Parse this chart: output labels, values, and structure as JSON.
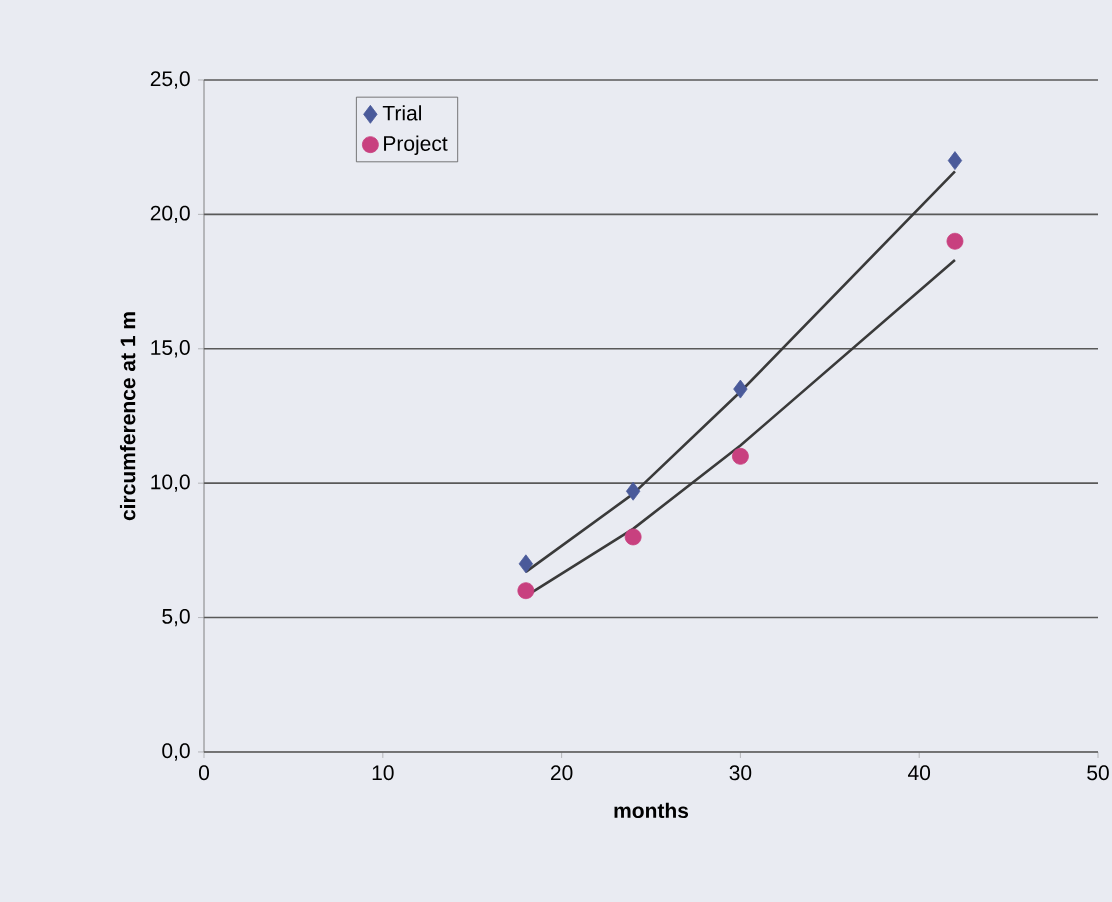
{
  "chart_data": {
    "type": "scatter",
    "xlabel": "months",
    "ylabel": "circumference at 1 m",
    "xlim": [
      0,
      50
    ],
    "xticks": [
      0,
      10,
      20,
      30,
      40,
      50
    ],
    "ylim": [
      0,
      25
    ],
    "yticks": [
      {
        "value": 0,
        "label": "0,0"
      },
      {
        "value": 5,
        "label": "5,0"
      },
      {
        "value": 10,
        "label": "10,0"
      },
      {
        "value": 15,
        "label": "15,0"
      },
      {
        "value": 20,
        "label": "20,0"
      },
      {
        "value": 25,
        "label": "25,0"
      }
    ],
    "grid": "y",
    "legend": "top left",
    "series": [
      {
        "name": "Trial",
        "color": "#4a5a9a",
        "marker": "diamond",
        "x": [
          18,
          24,
          30,
          42
        ],
        "values": [
          7.0,
          9.7,
          13.5,
          22.0
        ]
      },
      {
        "name": "Project",
        "color": "#c8407f",
        "marker": "circle",
        "x": [
          18,
          24,
          30,
          42
        ],
        "values": [
          6.0,
          8.0,
          11.0,
          19.0
        ]
      },
      {
        "type": "line",
        "color": "#3a3a3a",
        "marker": "none",
        "x": [
          18,
          24,
          30,
          42
        ],
        "values": [
          6.7,
          9.6,
          13.4,
          21.6
        ]
      },
      {
        "type": "line",
        "color": "#3a3a3a",
        "marker": "none",
        "x": [
          18,
          24,
          30,
          42
        ],
        "values": [
          5.8,
          8.3,
          11.4,
          18.3
        ]
      }
    ]
  }
}
